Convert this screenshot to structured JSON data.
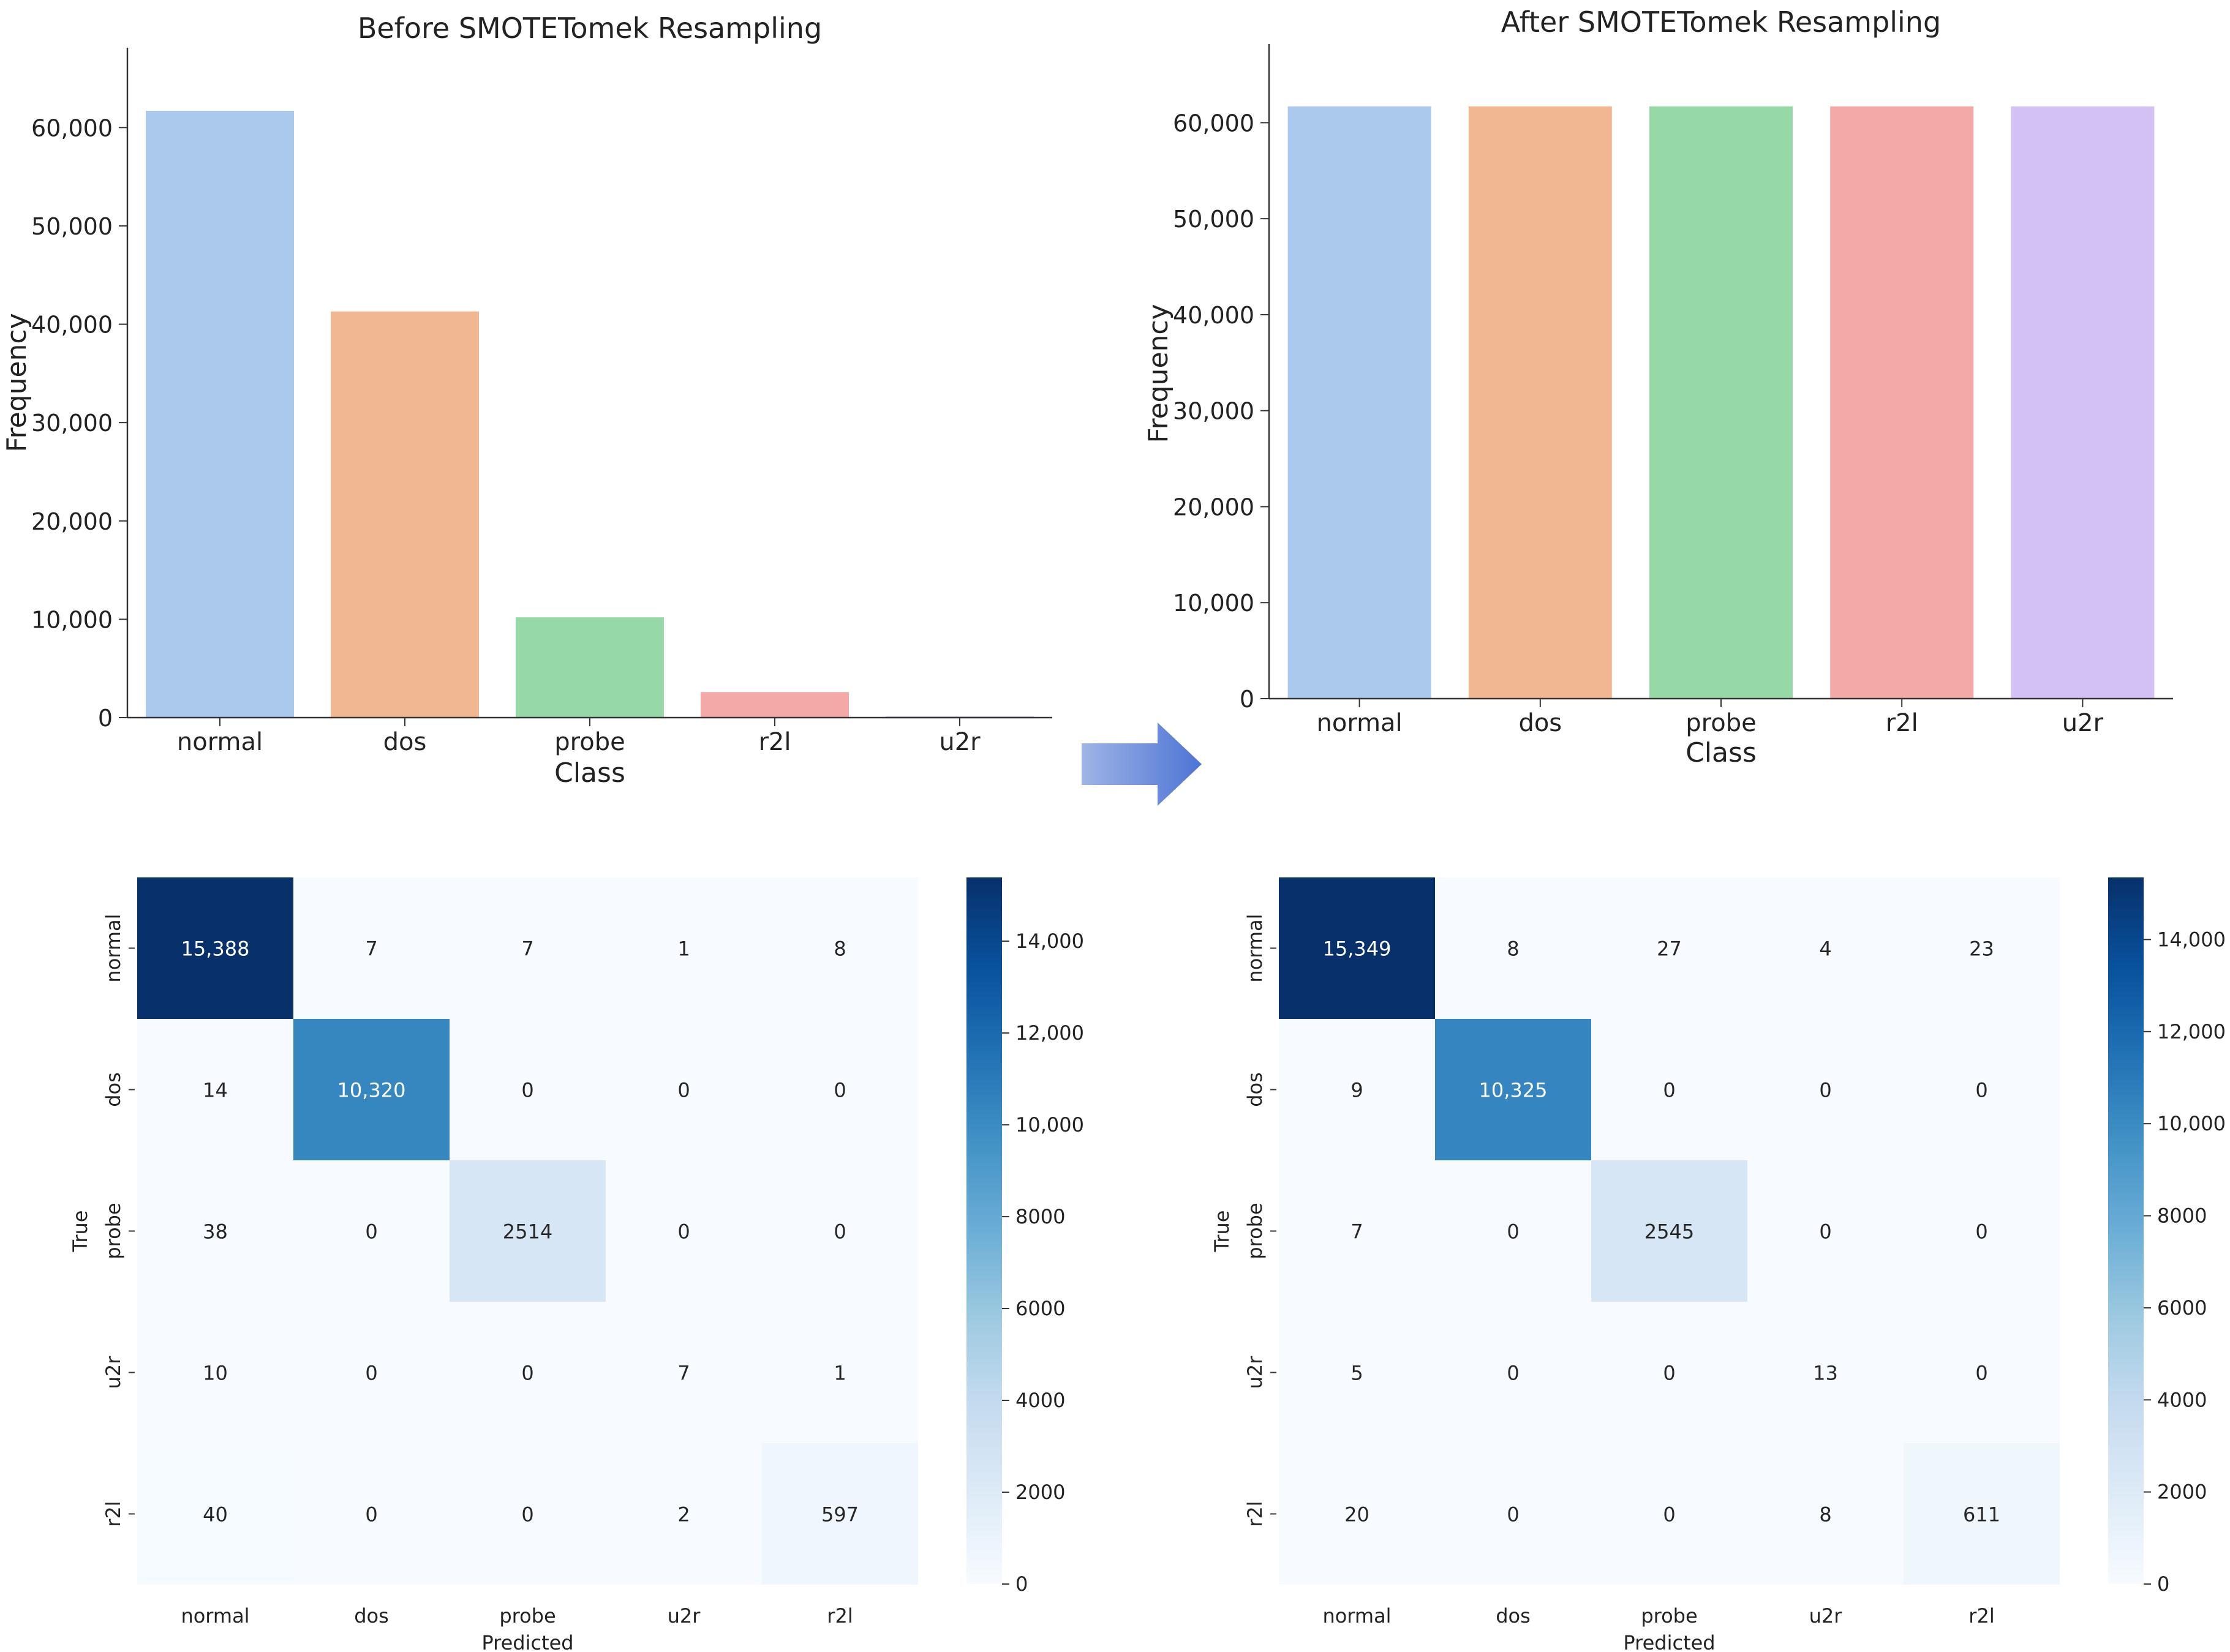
{
  "chart_data": [
    {
      "type": "bar",
      "title": "Before SMOTETomek Resampling",
      "xlabel": "Class",
      "ylabel": "Frequency",
      "categories": [
        "normal",
        "dos",
        "probe",
        "r2l",
        "u2r"
      ],
      "values": [
        61700,
        41300,
        10200,
        2600,
        50
      ],
      "ylim": [
        0,
        65000
      ],
      "yticks": [
        0,
        10000,
        20000,
        30000,
        40000,
        50000,
        60000
      ],
      "ytick_labels": [
        "0",
        "10,000",
        "20,000",
        "30,000",
        "40,000",
        "50,000",
        "60,000"
      ],
      "colors": [
        "#abc9ec",
        "#f0b792",
        "#96d9a6",
        "#f2a9a7",
        "#d3c0f5"
      ]
    },
    {
      "type": "bar",
      "title": "After SMOTETomek Resampling",
      "xlabel": "Class",
      "ylabel": "Frequency",
      "categories": [
        "normal",
        "dos",
        "probe",
        "r2l",
        "u2r"
      ],
      "values": [
        61700,
        61700,
        61700,
        61700,
        61700
      ],
      "ylim": [
        0,
        65000
      ],
      "yticks": [
        0,
        10000,
        20000,
        30000,
        40000,
        50000,
        60000
      ],
      "ytick_labels": [
        "0",
        "10,000",
        "20,000",
        "30,000",
        "40,000",
        "50,000",
        "60,000"
      ],
      "colors": [
        "#abc9ec",
        "#f0b792",
        "#96d9a6",
        "#f2a9a7",
        "#d3c0f5"
      ]
    },
    {
      "type": "heatmap",
      "xlabel": "Predicted",
      "ylabel": "True",
      "x_categories": [
        "normal",
        "dos",
        "probe",
        "u2r",
        "r2l"
      ],
      "y_categories": [
        "normal",
        "dos",
        "probe",
        "u2r",
        "r2l"
      ],
      "matrix": [
        [
          15388,
          7,
          7,
          1,
          8
        ],
        [
          14,
          10320,
          0,
          0,
          0
        ],
        [
          38,
          0,
          2514,
          0,
          0
        ],
        [
          10,
          0,
          0,
          7,
          1
        ],
        [
          40,
          0,
          0,
          2,
          597
        ]
      ],
      "cell_labels": [
        [
          "15,388",
          "7",
          "7",
          "1",
          "8"
        ],
        [
          "14",
          "10,320",
          "0",
          "0",
          "0"
        ],
        [
          "38",
          "0",
          "2514",
          "0",
          "0"
        ],
        [
          "10",
          "0",
          "0",
          "7",
          "1"
        ],
        [
          "40",
          "0",
          "0",
          "2",
          "597"
        ]
      ],
      "colorbar_range": [
        0,
        15388
      ],
      "colorbar_ticks": [
        0,
        2000,
        4000,
        6000,
        8000,
        10000,
        12000,
        14000
      ],
      "colorbar_tick_labels": [
        "0",
        "2000",
        "4000",
        "6000",
        "8000",
        "10,000",
        "12,000",
        "14,000"
      ]
    },
    {
      "type": "heatmap",
      "xlabel": "Predicted",
      "ylabel": "True",
      "x_categories": [
        "normal",
        "dos",
        "probe",
        "u2r",
        "r2l"
      ],
      "y_categories": [
        "normal",
        "dos",
        "probe",
        "u2r",
        "r2l"
      ],
      "matrix": [
        [
          15349,
          8,
          27,
          4,
          23
        ],
        [
          9,
          10325,
          0,
          0,
          0
        ],
        [
          7,
          0,
          2545,
          0,
          0
        ],
        [
          5,
          0,
          0,
          13,
          0
        ],
        [
          20,
          0,
          0,
          8,
          611
        ]
      ],
      "cell_labels": [
        [
          "15,349",
          "8",
          "27",
          "4",
          "23"
        ],
        [
          "9",
          "10,325",
          "0",
          "0",
          "0"
        ],
        [
          "7",
          "0",
          "2545",
          "0",
          "0"
        ],
        [
          "5",
          "0",
          "0",
          "13",
          "0"
        ],
        [
          "20",
          "0",
          "0",
          "8",
          "611"
        ]
      ],
      "colorbar_range": [
        0,
        15349
      ],
      "colorbar_ticks": [
        0,
        2000,
        4000,
        6000,
        8000,
        10000,
        12000,
        14000
      ],
      "colorbar_tick_labels": [
        "0",
        "2000",
        "4000",
        "6000",
        "8000",
        "10,000",
        "12,000",
        "14,000"
      ]
    }
  ],
  "transition_arrow": {
    "icon": "arrow-right-icon",
    "color": "#5b7fd6"
  }
}
